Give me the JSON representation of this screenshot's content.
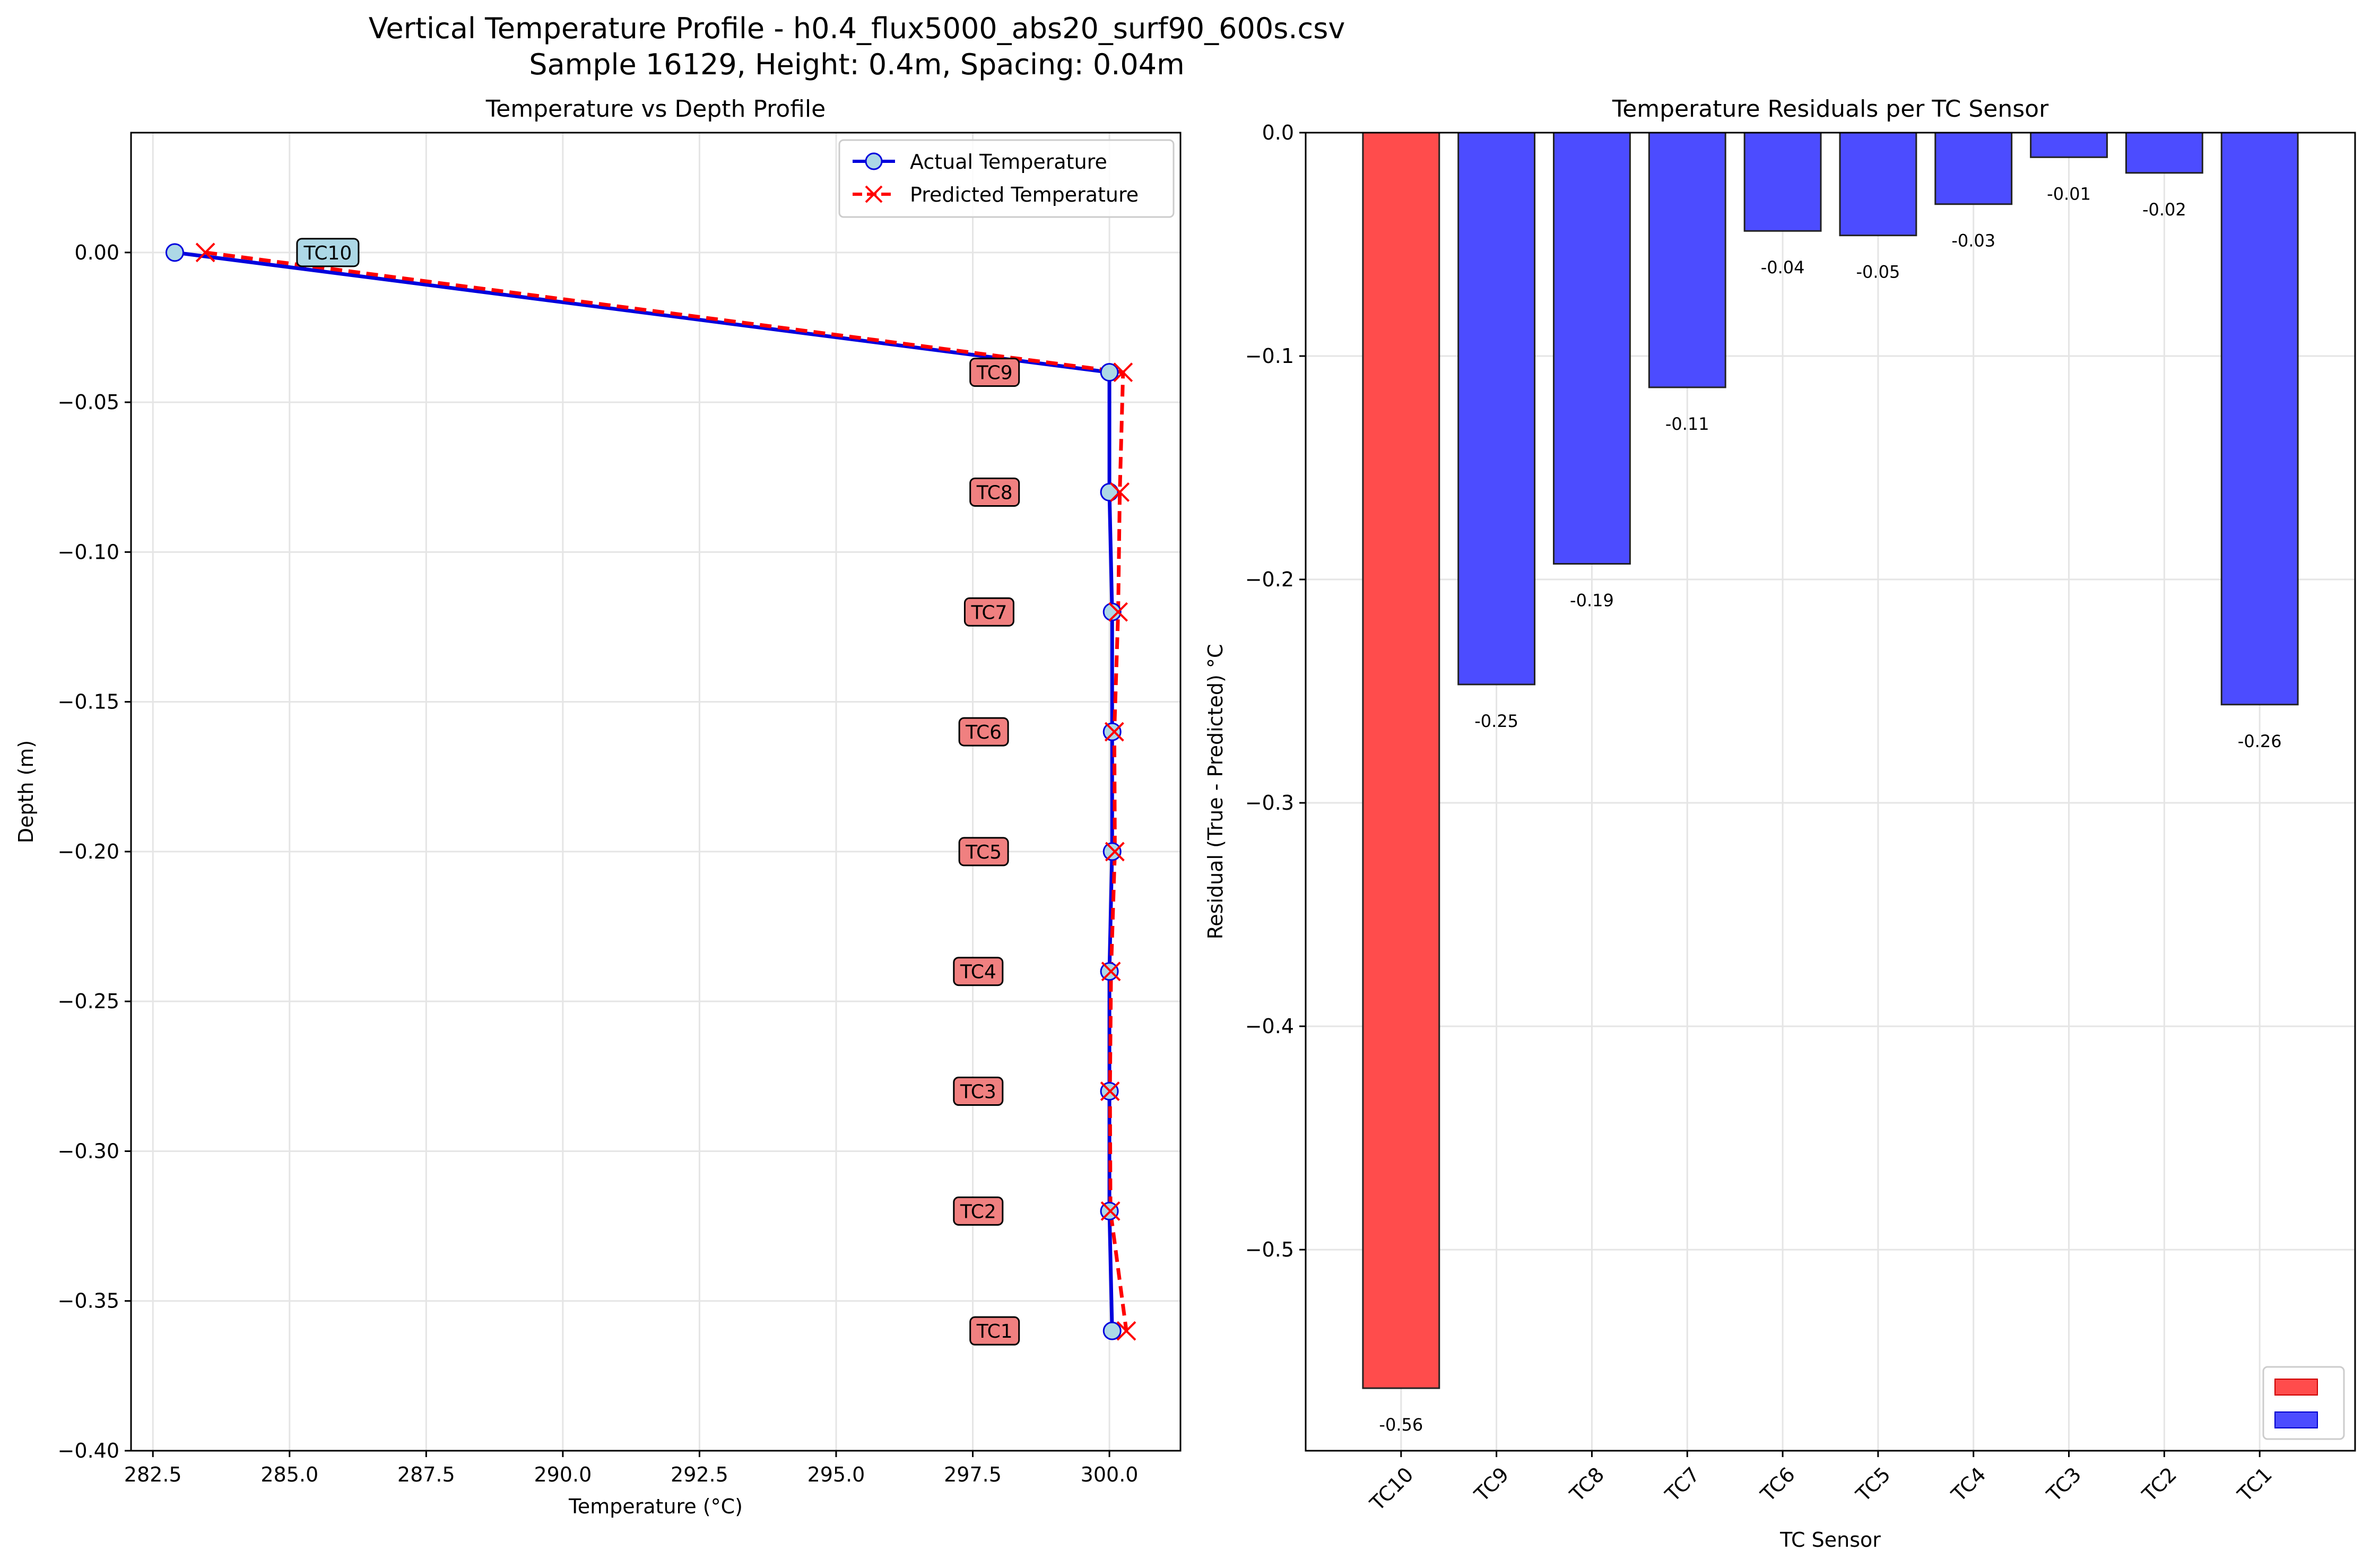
{
  "suptitle": {
    "line1": "Vertical Temperature Profile - h0.4_flux5000_abs20_surf90_600s.csv",
    "line2": "Sample 16129, Height: 0.4m, Spacing: 0.04m"
  },
  "colors": {
    "actual": "#0000dd",
    "actual_marker_fill": "#add8e6",
    "predicted": "#ff0000",
    "bar_negative_large": "#ff4c4c",
    "bar_negative": "#4c4cff",
    "label_box_top": "#add8e6",
    "label_box": "#f08080",
    "grid": "#e5e5e5"
  },
  "chart_data": [
    {
      "type": "line",
      "title": "Temperature vs Depth Profile",
      "xlabel": "Temperature (°C)",
      "ylabel": "Depth (m)",
      "xlim": [
        282.1,
        301.3
      ],
      "ylim": [
        -0.4,
        0.04
      ],
      "xticks": [
        282.5,
        285.0,
        287.5,
        290.0,
        292.5,
        295.0,
        297.5,
        300.0
      ],
      "xtick_labels": [
        "282.5",
        "285.0",
        "287.5",
        "290.0",
        "292.5",
        "295.0",
        "297.5",
        "300.0"
      ],
      "yticks": [
        0.0,
        -0.05,
        -0.1,
        -0.15,
        -0.2,
        -0.25,
        -0.3,
        -0.35,
        -0.4
      ],
      "ytick_labels": [
        "0.00",
        "−0.05",
        "−0.10",
        "−0.15",
        "−0.20",
        "−0.25",
        "−0.30",
        "−0.35",
        "−0.40"
      ],
      "grid": true,
      "legend_position": "top-right",
      "series": [
        {
          "name": "Actual Temperature",
          "style": "solid, circle markers",
          "points": [
            {
              "x": 282.9,
              "y": 0.0
            },
            {
              "x": 300.0,
              "y": -0.04
            },
            {
              "x": 300.0,
              "y": -0.08
            },
            {
              "x": 300.05,
              "y": -0.12
            },
            {
              "x": 300.05,
              "y": -0.16
            },
            {
              "x": 300.05,
              "y": -0.2
            },
            {
              "x": 300.0,
              "y": -0.24
            },
            {
              "x": 300.0,
              "y": -0.28
            },
            {
              "x": 300.0,
              "y": -0.32
            },
            {
              "x": 300.05,
              "y": -0.36
            }
          ]
        },
        {
          "name": "Predicted Temperature",
          "style": "dashed, x markers",
          "points": [
            {
              "x": 283.46,
              "y": 0.0
            },
            {
              "x": 300.25,
              "y": -0.04
            },
            {
              "x": 300.19,
              "y": -0.08
            },
            {
              "x": 300.16,
              "y": -0.12
            },
            {
              "x": 300.09,
              "y": -0.16
            },
            {
              "x": 300.1,
              "y": -0.2
            },
            {
              "x": 300.03,
              "y": -0.24
            },
            {
              "x": 300.01,
              "y": -0.28
            },
            {
              "x": 300.02,
              "y": -0.32
            },
            {
              "x": 300.31,
              "y": -0.36
            }
          ]
        }
      ],
      "sensor_labels": [
        {
          "text": "TC10",
          "x": 285.7,
          "y": 0.0
        },
        {
          "text": "TC9",
          "x": 297.9,
          "y": -0.04
        },
        {
          "text": "TC8",
          "x": 297.9,
          "y": -0.08
        },
        {
          "text": "TC7",
          "x": 297.8,
          "y": -0.12
        },
        {
          "text": "TC6",
          "x": 297.7,
          "y": -0.16
        },
        {
          "text": "TC5",
          "x": 297.7,
          "y": -0.2
        },
        {
          "text": "TC4",
          "x": 297.6,
          "y": -0.24
        },
        {
          "text": "TC3",
          "x": 297.6,
          "y": -0.28
        },
        {
          "text": "TC2",
          "x": 297.6,
          "y": -0.32
        },
        {
          "text": "TC1",
          "x": 297.9,
          "y": -0.36
        }
      ]
    },
    {
      "type": "bar",
      "title": "Temperature Residuals per TC Sensor",
      "xlabel": "TC Sensor",
      "ylabel": "Residual (True - Predicted) °C",
      "categories": [
        "TC10",
        "TC9",
        "TC8",
        "TC7",
        "TC6",
        "TC5",
        "TC4",
        "TC3",
        "TC2",
        "TC1"
      ],
      "values": [
        -0.562,
        -0.247,
        -0.193,
        -0.114,
        -0.044,
        -0.046,
        -0.032,
        -0.011,
        -0.018,
        -0.256
      ],
      "value_labels": [
        "-0.56",
        "-0.25",
        "-0.19",
        "-0.11",
        "-0.04",
        "-0.05",
        "-0.03",
        "-0.01",
        "-0.02",
        "-0.26"
      ],
      "bar_color_keys": [
        "bar_negative_large",
        "bar_negative",
        "bar_negative",
        "bar_negative",
        "bar_negative",
        "bar_negative",
        "bar_negative",
        "bar_negative",
        "bar_negative",
        "bar_negative"
      ],
      "ylim": [
        -0.59,
        0.0
      ],
      "yticks": [
        0.0,
        -0.1,
        -0.2,
        -0.3,
        -0.4,
        -0.5
      ],
      "ytick_labels": [
        "0.0",
        "−0.1",
        "−0.2",
        "−0.3",
        "−0.4",
        "−0.5"
      ],
      "grid": true,
      "legend_position": "bottom-right",
      "legend_swatch_keys": [
        "bar_negative_large",
        "bar_negative"
      ]
    }
  ]
}
